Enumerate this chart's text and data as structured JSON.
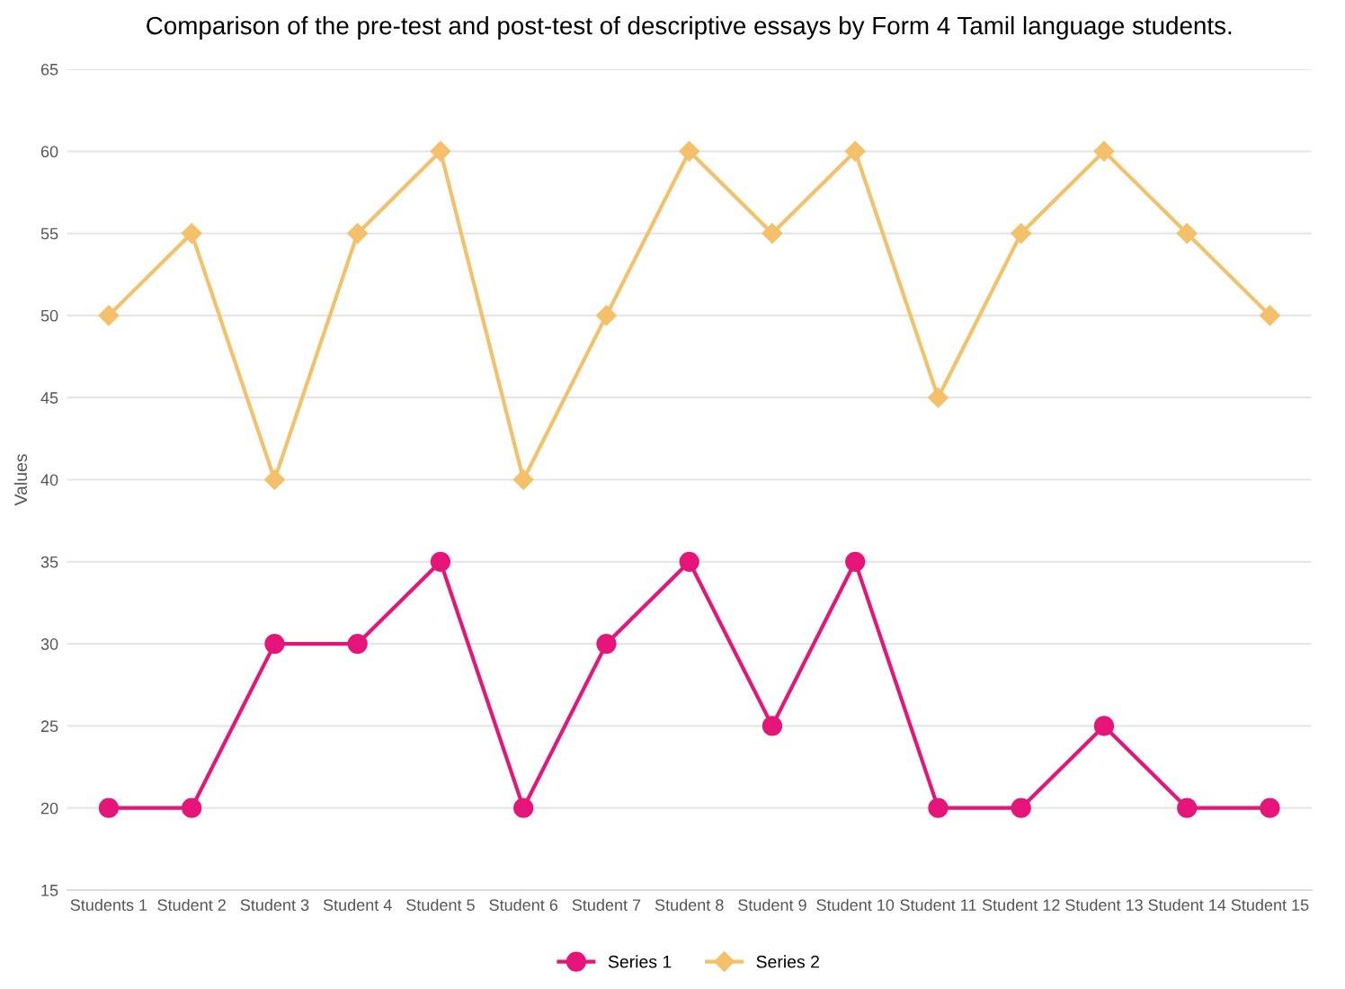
{
  "chart_data": {
    "type": "line",
    "title": "Comparison of the pre-test and post-test of descriptive essays by Form 4 Tamil language students.",
    "ylabel": "Values",
    "categories": [
      "Students 1",
      "Student 2",
      "Student 3",
      "Student 4",
      "Student 5",
      "Student 6",
      "Student 7",
      "Student 8",
      "Student 9",
      "Student 10",
      "Student 11",
      "Student 12",
      "Student 13",
      "Student 14",
      "Student 15"
    ],
    "series": [
      {
        "name": "Series 1",
        "color": "#e6157a",
        "marker": "circle",
        "values": [
          20,
          20,
          30,
          30,
          35,
          20,
          30,
          35,
          25,
          35,
          20,
          20,
          25,
          20,
          20
        ]
      },
      {
        "name": "Series 2",
        "color": "#f4c06a",
        "marker": "diamond",
        "values": [
          50,
          55,
          40,
          55,
          60,
          40,
          50,
          60,
          55,
          60,
          45,
          55,
          60,
          55,
          50
        ]
      }
    ],
    "ylim": [
      15,
      65
    ],
    "yticks": [
      15,
      20,
      25,
      30,
      35,
      40,
      45,
      50,
      55,
      60,
      65
    ],
    "grid": "y",
    "legend": "bottom",
    "line_style": "solid"
  }
}
